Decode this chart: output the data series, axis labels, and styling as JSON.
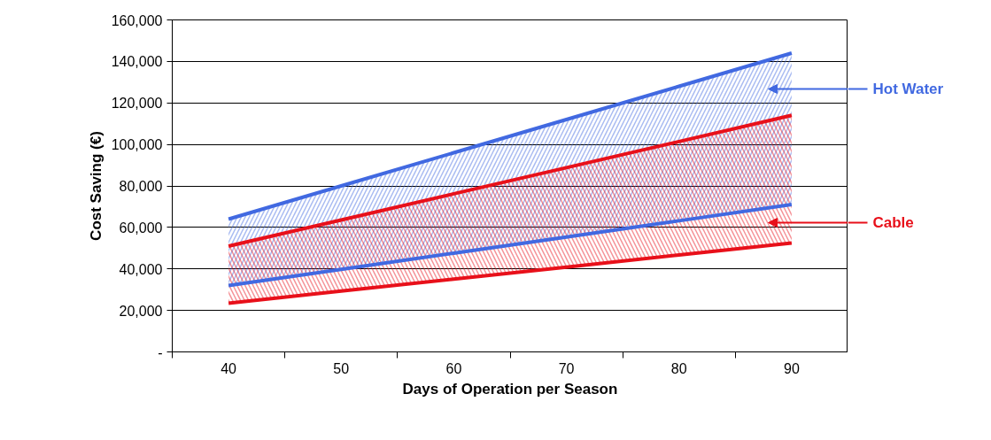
{
  "chart_data": {
    "type": "line",
    "xlabel": "Days of Operation per Season",
    "ylabel": "Cost Saving (€)",
    "categories": [
      "40",
      "50",
      "60",
      "70",
      "80",
      "90"
    ],
    "series": [
      {
        "color": "#4169e1",
        "values": [
          64000,
          80000,
          96000,
          112000,
          128000,
          144000
        ],
        "lower": [
          32000,
          39800,
          47600,
          55400,
          63200,
          71000
        ],
        "upper": [
          64000,
          80000,
          96000,
          112000,
          128000,
          144000
        ]
      },
      {
        "color": "#4169e1",
        "values": [
          32000,
          39800,
          47600,
          55400,
          63200,
          71000
        ]
      },
      {
        "color": "#e8101a",
        "values": [
          51000,
          63600,
          76200,
          88800,
          101400,
          114000
        ],
        "lower": [
          23500,
          29300,
          35100,
          40900,
          46700,
          52500
        ],
        "upper": [
          51000,
          63600,
          76200,
          88800,
          101400,
          114000
        ]
      },
      {
        "color": "#e8101a",
        "values": [
          23500,
          29300,
          35100,
          40900,
          46700,
          52500
        ]
      }
    ],
    "annotations": [
      "Hot Water",
      "Cable"
    ],
    "ylim": [
      0,
      160000
    ],
    "yticks": [
      {
        "value": 0,
        "label": "-"
      },
      {
        "value": 20000,
        "label": "20,000"
      },
      {
        "value": 40000,
        "label": "40,000"
      },
      {
        "value": 60000,
        "label": "60,000"
      },
      {
        "value": 80000,
        "label": "80,000"
      },
      {
        "value": 100000,
        "label": "100,000"
      },
      {
        "value": 120000,
        "label": "120,000"
      },
      {
        "value": 140000,
        "label": "140,000"
      },
      {
        "value": 160000,
        "label": "160,000"
      }
    ],
    "grid": "y"
  }
}
